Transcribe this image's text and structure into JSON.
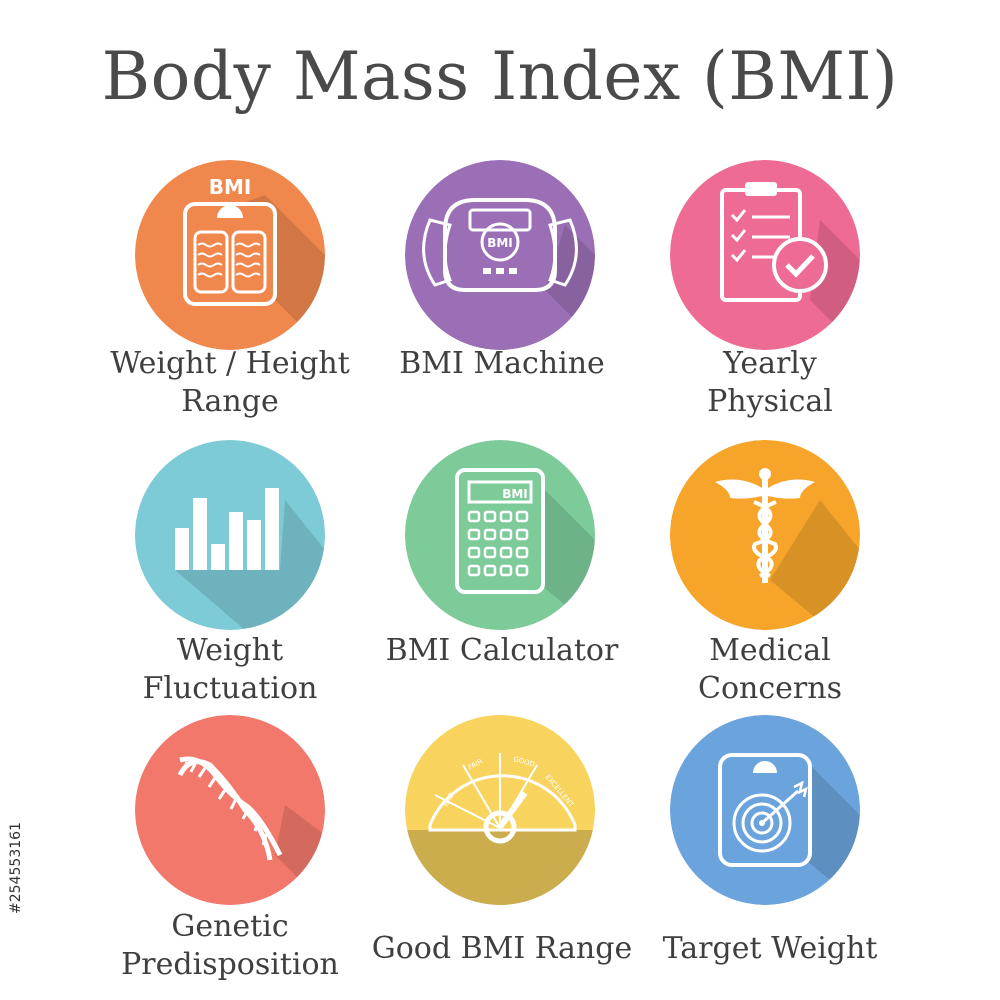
{
  "title": "Body Mass Index (BMI)",
  "icons": [
    {
      "label_lines": [
        "Weight / Height",
        "Range"
      ],
      "icon_name": "bmi-scale-icon",
      "color": "#f0884e",
      "icon_text": "BMI"
    },
    {
      "label_lines": [
        "BMI Machine"
      ],
      "icon_name": "bmi-machine-icon",
      "color": "#9b6fb5",
      "icon_text": "BMI"
    },
    {
      "label_lines": [
        "Yearly",
        "Physical"
      ],
      "icon_name": "clipboard-check-icon",
      "color": "#ee6b93"
    },
    {
      "label_lines": [
        "Weight",
        "Fluctuation"
      ],
      "icon_name": "bar-chart-icon",
      "color": "#7dcbd6"
    },
    {
      "label_lines": [
        "BMI Calculator"
      ],
      "icon_name": "calculator-icon",
      "color": "#7ecb9a",
      "icon_text": "BMI"
    },
    {
      "label_lines": [
        "Medical",
        "Concerns"
      ],
      "icon_name": "caduceus-icon",
      "color": "#f6a52a"
    },
    {
      "label_lines": [
        "Genetic",
        "Predisposition"
      ],
      "icon_name": "dna-icon",
      "color": "#f2786c"
    },
    {
      "label_lines": [
        "Good BMI Range"
      ],
      "icon_name": "gauge-icon",
      "color": "#f8d35e",
      "gauge_labels": [
        "BAD",
        "FAIR",
        "GOOD",
        "EXCELLENT"
      ]
    },
    {
      "label_lines": [
        "Target Weight"
      ],
      "icon_name": "target-scale-icon",
      "color": "#6ba3dc"
    }
  ],
  "stock_id": "#254553161"
}
